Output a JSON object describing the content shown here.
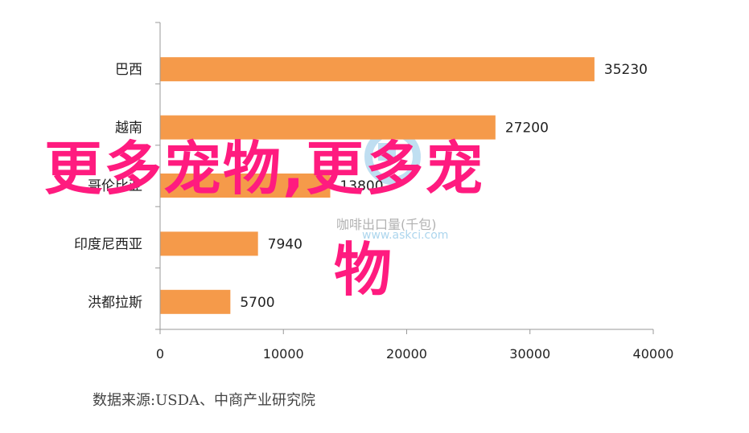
{
  "chart_data": {
    "type": "bar",
    "orientation": "horizontal",
    "categories": [
      "巴西",
      "越南",
      "哥伦比亚",
      "印度尼西亚",
      "洪都拉斯"
    ],
    "values": [
      35230,
      27200,
      13800,
      7940,
      5700
    ],
    "data_labels": [
      "35230",
      "27200",
      "13800",
      "7940",
      "5700"
    ],
    "xlim": [
      0,
      40000
    ],
    "xticks": [
      "0",
      "10000",
      "20000",
      "30000",
      "40000"
    ],
    "bar_color": "#f59a4a",
    "grid": false
  },
  "source_text": "数据来源:USDA、中商产业研究院",
  "overlay": {
    "line1": "更多宠物,更多宠",
    "line2": "物",
    "color": "#ff1b7f"
  },
  "watermark": {
    "line1": "咖啡出口量(千包)",
    "line2": "www.askci.com"
  }
}
